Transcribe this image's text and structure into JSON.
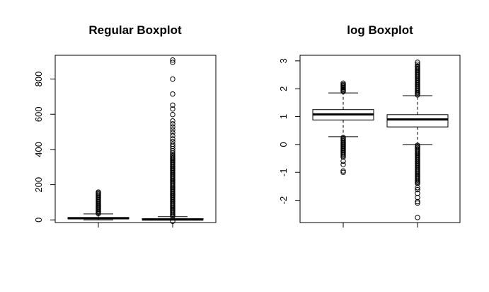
{
  "chart_data": [
    {
      "type": "boxplot",
      "title": "Regular Boxplot",
      "xlabel": "",
      "ylabel": "",
      "ylim": [
        -15,
        935
      ],
      "yticks": [
        0,
        200,
        400,
        600,
        800
      ],
      "yticklabels": [
        "0",
        "200",
        "400",
        "600",
        "800"
      ],
      "boxes": [
        {
          "whisker_low": 0,
          "q1": 6,
          "median": 9,
          "q3": 14,
          "whisker_high": 34,
          "outliers_low": [],
          "outliers_high_dense": [
            36,
            140
          ],
          "outliers_high": [
            146,
            152,
            158
          ]
        },
        {
          "whisker_low": 0,
          "q1": 0,
          "median": 2,
          "q3": 7,
          "whisker_high": 18,
          "outliers_low": [
            -8
          ],
          "outliers_high_dense": [
            20,
            370
          ],
          "outliers_high": [
            380,
            392,
            405,
            418,
            430,
            445,
            460,
            478,
            495,
            512,
            528,
            545,
            562,
            598,
            630,
            652,
            715,
            800,
            895,
            908
          ]
        }
      ]
    },
    {
      "type": "boxplot",
      "title": "log Boxplot",
      "xlabel": "",
      "ylabel": "",
      "ylim": [
        -2.8,
        3.2
      ],
      "yticks": [
        -2,
        -1,
        0,
        1,
        2,
        3
      ],
      "yticklabels": [
        "-2",
        "-1",
        "0",
        "1",
        "2",
        "3"
      ],
      "boxes": [
        {
          "whisker_low": 0.28,
          "q1": 0.88,
          "median": 1.08,
          "q3": 1.25,
          "whisker_high": 1.85,
          "outliers_low_dense": [
            -0.45,
            0.25
          ],
          "outliers_low": [
            -0.6,
            -0.72,
            -0.95,
            -1.0
          ],
          "outliers_high_dense": [
            1.9,
            2.15
          ],
          "outliers_high": [
            2.2
          ]
        },
        {
          "whisker_low": 0.0,
          "q1": 0.63,
          "median": 0.9,
          "q3": 1.07,
          "whisker_high": 1.75,
          "outliers_low_dense": [
            -1.4,
            -0.03
          ],
          "outliers_low": [
            -1.55,
            -1.62,
            -1.75,
            -1.9,
            -2.05,
            -2.1,
            -2.62
          ],
          "outliers_high_dense": [
            1.78,
            2.82
          ],
          "outliers_high": [
            2.88,
            2.95
          ]
        }
      ]
    }
  ]
}
